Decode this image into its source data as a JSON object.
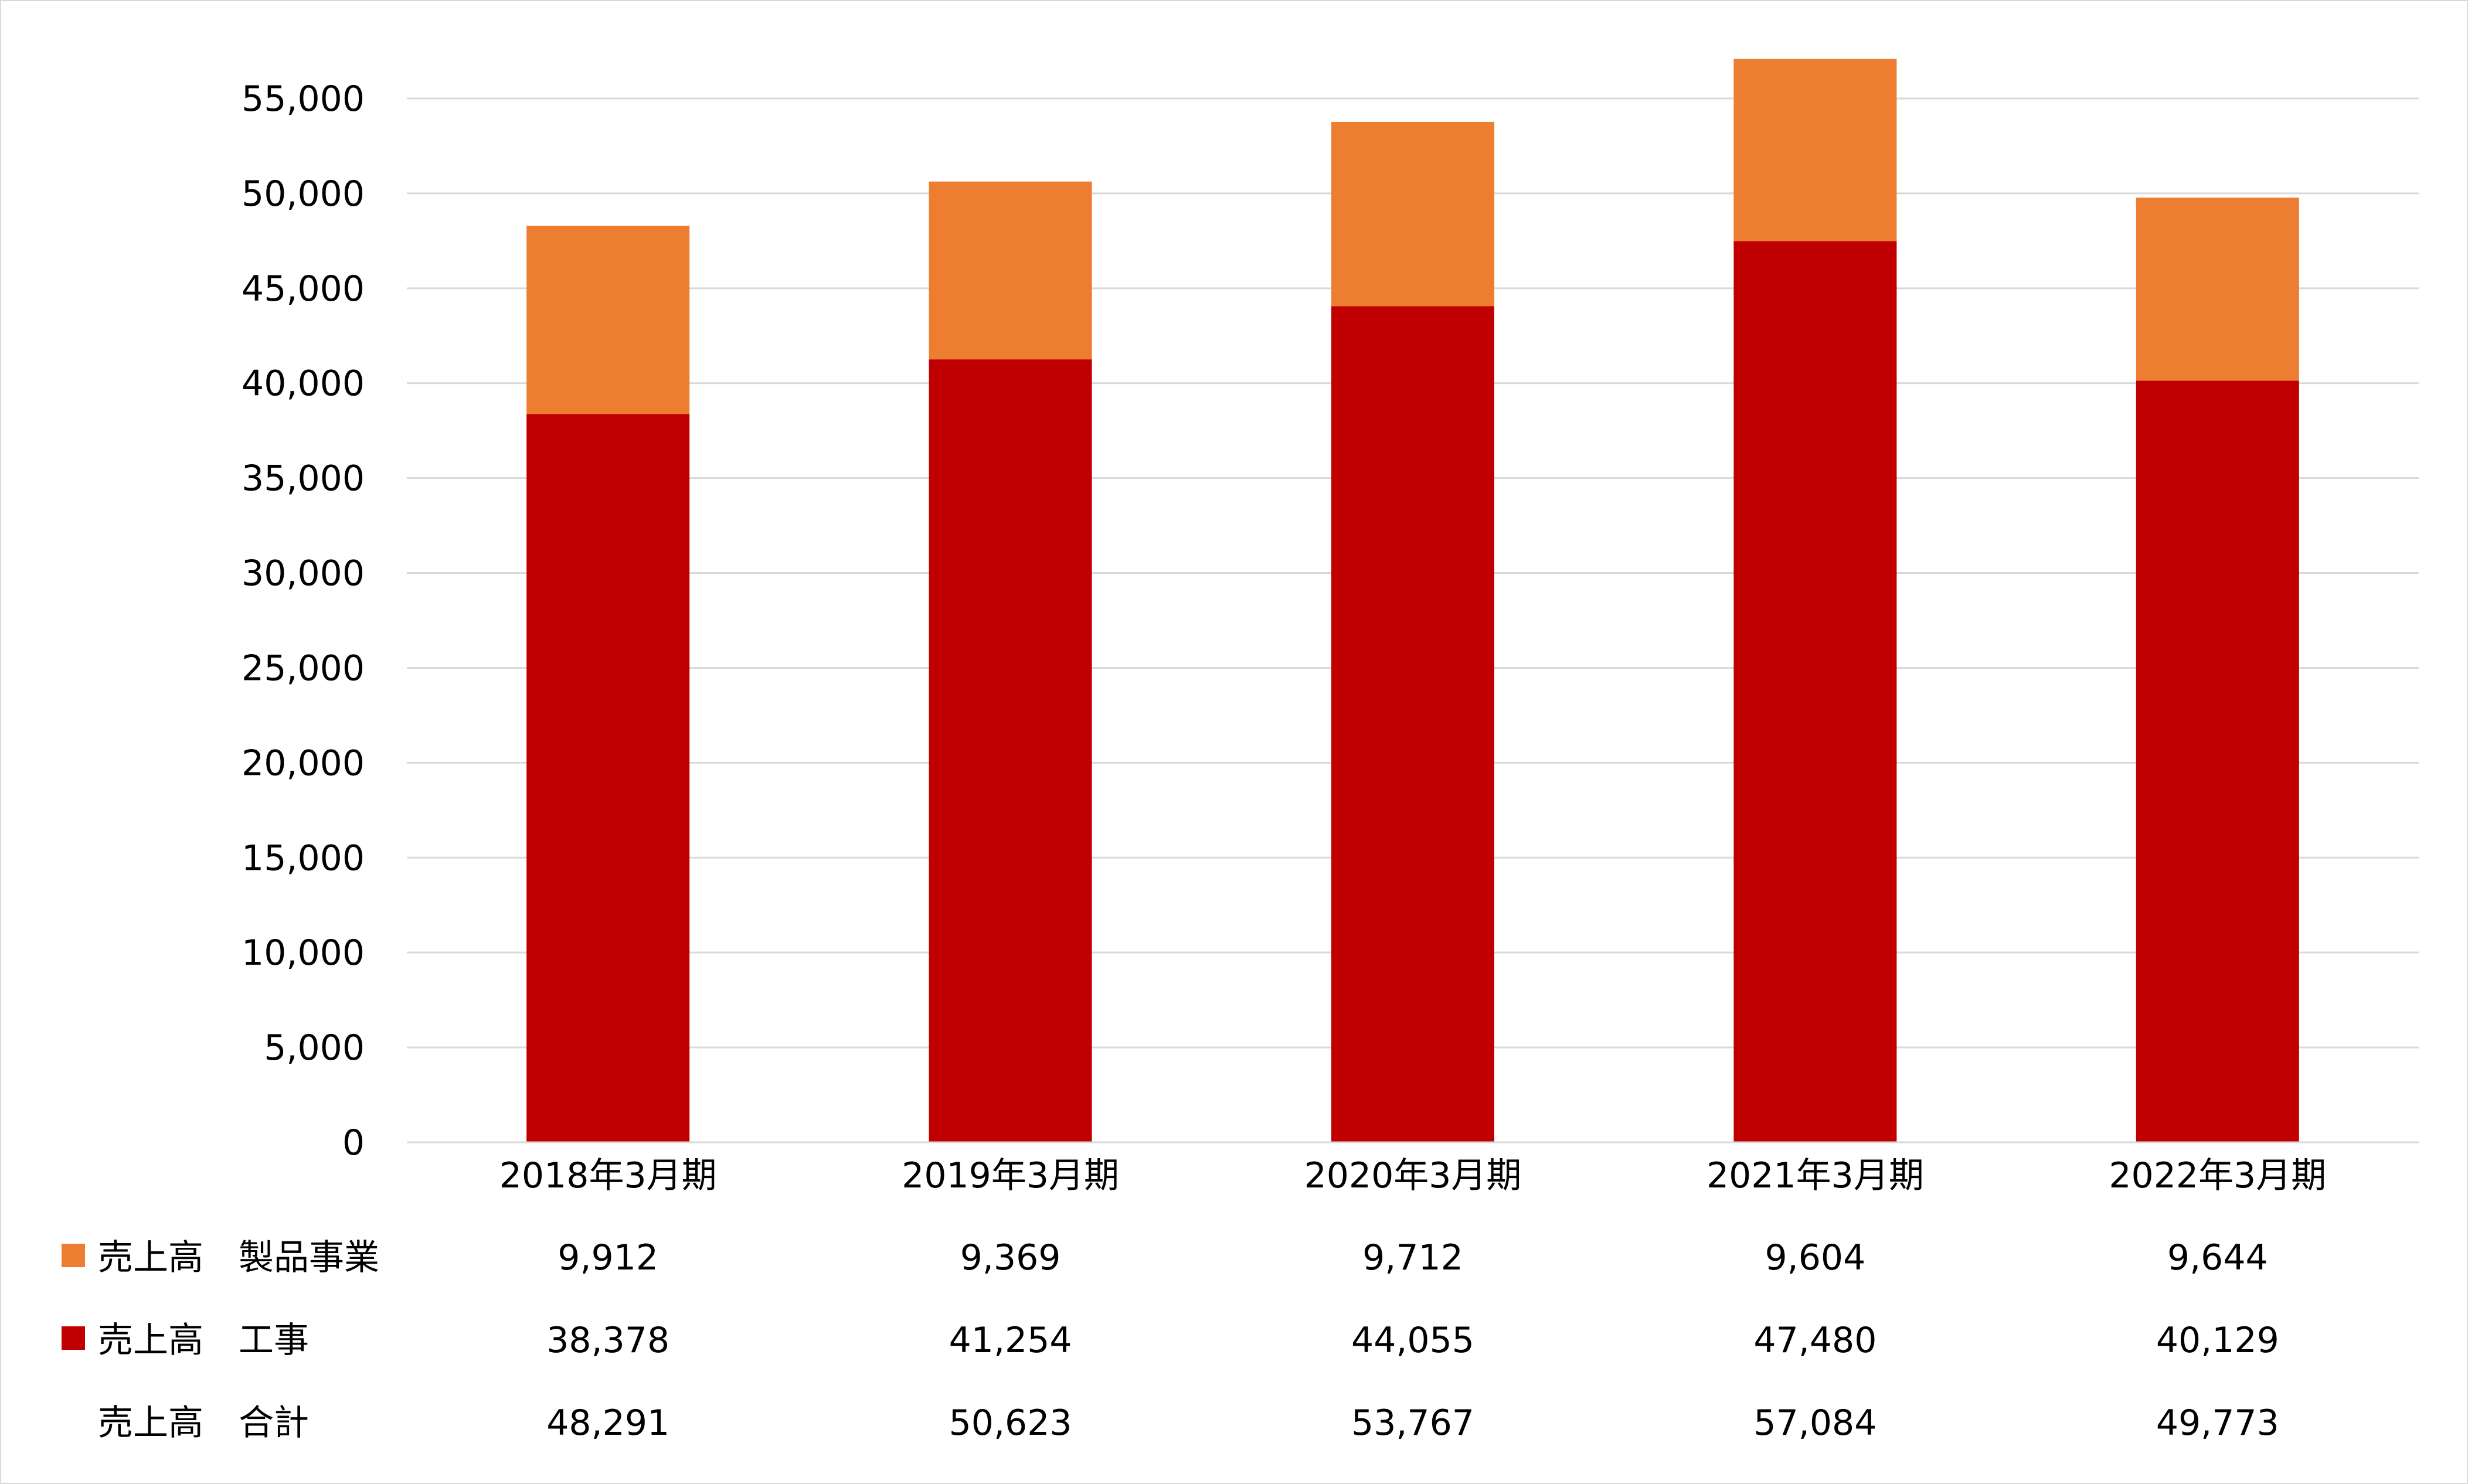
{
  "chart_data": {
    "type": "bar",
    "stacked": true,
    "categories": [
      "2018年3月期",
      "2019年3月期",
      "2020年3月期",
      "2021年3月期",
      "2022年3月期"
    ],
    "series": [
      {
        "name": "売上高　工事",
        "color": "#c00000",
        "values": [
          38378,
          41254,
          44055,
          47480,
          40129
        ]
      },
      {
        "name": "売上高　製品事業",
        "color": "#ed7d31",
        "values": [
          9912,
          9369,
          9712,
          9604,
          9644
        ]
      }
    ],
    "ylim": [
      0,
      55000
    ],
    "yticks": [
      0,
      5000,
      10000,
      15000,
      20000,
      25000,
      30000,
      35000,
      40000,
      45000,
      50000,
      55000
    ],
    "grid": true,
    "legend": "data table below chart",
    "data_table": {
      "rows": [
        {
          "label": "売上高　製品事業",
          "marker_color": "#ed7d31",
          "values": [
            "9,912",
            "9,369",
            "9,712",
            "9,604",
            "9,644"
          ]
        },
        {
          "label": "売上高　工事",
          "marker_color": "#c00000",
          "values": [
            "38,378",
            "41,254",
            "44,055",
            "47,480",
            "40,129"
          ]
        },
        {
          "label": "売上高　合計",
          "marker_color": null,
          "values": [
            "48,291",
            "50,623",
            "53,767",
            "57,084",
            "49,773"
          ]
        }
      ]
    }
  }
}
